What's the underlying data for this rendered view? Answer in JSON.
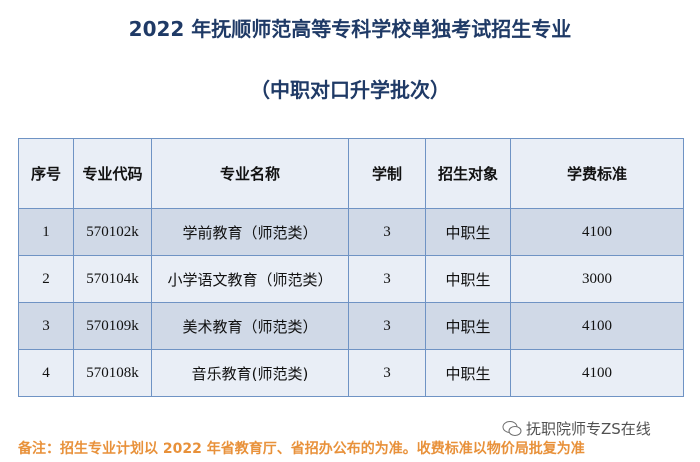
{
  "title": "2022 年抚顺师范高等专科学校单独考试招生专业",
  "subtitle": "（中职对口升学批次）",
  "table": {
    "headers": [
      "序号",
      "专业代码",
      "专业名称",
      "学制",
      "招生对象",
      "学费标准"
    ],
    "rows": [
      [
        "1",
        "570102k",
        "学前教育（师范类）",
        "3",
        "中职生",
        "4100"
      ],
      [
        "2",
        "570104k",
        "小学语文教育（师范类）",
        "3",
        "中职生",
        "3000"
      ],
      [
        "3",
        "570109k",
        "美术教育（师范类）",
        "3",
        "中职生",
        "4100"
      ],
      [
        "4",
        "570108k",
        "音乐教育(师范类)",
        "3",
        "中职生",
        "4100"
      ]
    ]
  },
  "note": "备注：招生专业计划以 2022 年省教育厅、省招办公布的为准。收费标准以物价局批复为准",
  "watermark": {
    "icon": "wechat-icon",
    "text": "抚职院师专ZS在线"
  },
  "colors": {
    "title": "#1f3a66",
    "note": "#e8913a",
    "border": "#6f93c4",
    "row_dark": "#d0d9e7",
    "row_light": "#e9eef6"
  }
}
